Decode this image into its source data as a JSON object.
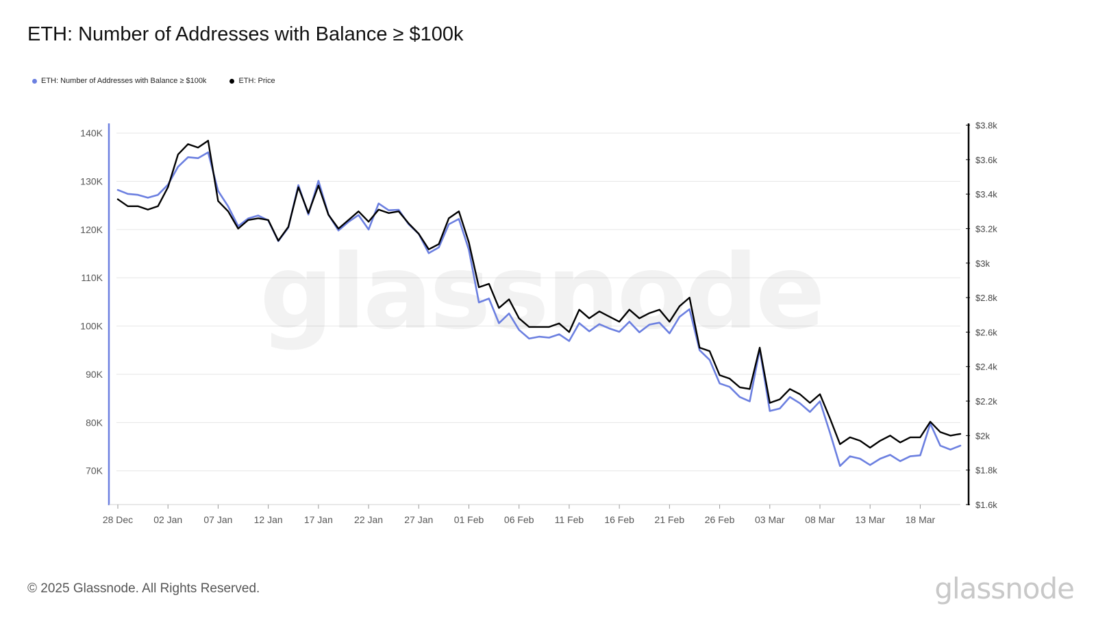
{
  "title": "ETH: Number of Addresses with Balance ≥ $100k",
  "footer": "© 2025 Glassnode. All Rights Reserved.",
  "brand": "glassnode",
  "colors": {
    "addresses": "#6b7fe0",
    "price": "#000000",
    "grid": "#e6e6e6"
  },
  "legend": [
    {
      "label": "ETH: Number of Addresses with Balance ≥ $100k",
      "color": "#6b7fe0"
    },
    {
      "label": "ETH: Price",
      "color": "#000000"
    }
  ],
  "chart_data": {
    "type": "line",
    "x": [
      "2024-12-28",
      "2024-12-29",
      "2024-12-30",
      "2024-12-31",
      "2025-01-01",
      "2025-01-02",
      "2025-01-03",
      "2025-01-04",
      "2025-01-05",
      "2025-01-06",
      "2025-01-07",
      "2025-01-08",
      "2025-01-09",
      "2025-01-10",
      "2025-01-11",
      "2025-01-12",
      "2025-01-13",
      "2025-01-14",
      "2025-01-15",
      "2025-01-16",
      "2025-01-17",
      "2025-01-18",
      "2025-01-19",
      "2025-01-20",
      "2025-01-21",
      "2025-01-22",
      "2025-01-23",
      "2025-01-24",
      "2025-01-25",
      "2025-01-26",
      "2025-01-27",
      "2025-01-28",
      "2025-01-29",
      "2025-01-30",
      "2025-01-31",
      "2025-02-01",
      "2025-02-02",
      "2025-02-03",
      "2025-02-04",
      "2025-02-05",
      "2025-02-06",
      "2025-02-07",
      "2025-02-08",
      "2025-02-09",
      "2025-02-10",
      "2025-02-11",
      "2025-02-12",
      "2025-02-13",
      "2025-02-14",
      "2025-02-15",
      "2025-02-16",
      "2025-02-17",
      "2025-02-18",
      "2025-02-19",
      "2025-02-20",
      "2025-02-21",
      "2025-02-22",
      "2025-02-23",
      "2025-02-24",
      "2025-02-25",
      "2025-02-26",
      "2025-02-27",
      "2025-02-28",
      "2025-03-01",
      "2025-03-02",
      "2025-03-03",
      "2025-03-04",
      "2025-03-05",
      "2025-03-06",
      "2025-03-07",
      "2025-03-08",
      "2025-03-09",
      "2025-03-10",
      "2025-03-11",
      "2025-03-12",
      "2025-03-13",
      "2025-03-14",
      "2025-03-15",
      "2025-03-16",
      "2025-03-17",
      "2025-03-18",
      "2025-03-19",
      "2025-03-20",
      "2025-03-21",
      "2025-03-22"
    ],
    "x_tick_labels": [
      "28 Dec",
      "02 Jan",
      "07 Jan",
      "12 Jan",
      "17 Jan",
      "22 Jan",
      "27 Jan",
      "01 Feb",
      "06 Feb",
      "11 Feb",
      "16 Feb",
      "21 Feb",
      "26 Feb",
      "03 Mar",
      "08 Mar",
      "13 Mar",
      "18 Mar"
    ],
    "left_ticks": [
      "70K",
      "80K",
      "90K",
      "100K",
      "110K",
      "120K",
      "130K",
      "140K"
    ],
    "right_ticks": [
      "$1.6k",
      "$1.8k",
      "$2k",
      "$2.2k",
      "$2.4k",
      "$2.6k",
      "$2.8k",
      "$3k",
      "$3.2k",
      "$3.4k",
      "$3.6k",
      "$3.8k"
    ],
    "ylim_left": [
      63000,
      142000
    ],
    "ylim_right": [
      1600,
      3810
    ],
    "series": [
      {
        "name": "ETH: Number of Addresses with Balance ≥ $100k",
        "axis": "left",
        "values": [
          128200,
          127400,
          127200,
          126600,
          127200,
          129300,
          133000,
          135000,
          134800,
          136000,
          128000,
          124800,
          120700,
          122300,
          122900,
          121900,
          117600,
          120400,
          129200,
          123100,
          130100,
          123100,
          119800,
          121600,
          123000,
          120000,
          125400,
          124000,
          124100,
          121100,
          119100,
          115100,
          116300,
          121100,
          122200,
          115800,
          104900,
          105700,
          100600,
          102600,
          99200,
          97400,
          97800,
          97600,
          98300,
          96900,
          100600,
          98900,
          100400,
          99500,
          98800,
          100900,
          98700,
          100300,
          100700,
          98500,
          101900,
          103500,
          95000,
          93000,
          88100,
          87400,
          85300,
          84400,
          95200,
          82400,
          82900,
          85300,
          84000,
          82200,
          84400,
          77900,
          71000,
          73000,
          72500,
          71200,
          72500,
          73300,
          72000,
          73000,
          73200,
          79800,
          75200,
          74400,
          75200
        ]
      },
      {
        "name": "ETH: Price",
        "axis": "right",
        "values": [
          3370,
          3330,
          3330,
          3310,
          3330,
          3440,
          3630,
          3690,
          3670,
          3710,
          3360,
          3300,
          3200,
          3250,
          3260,
          3250,
          3130,
          3210,
          3440,
          3290,
          3450,
          3280,
          3200,
          3250,
          3300,
          3240,
          3310,
          3290,
          3300,
          3230,
          3170,
          3080,
          3110,
          3260,
          3300,
          3120,
          2860,
          2880,
          2740,
          2790,
          2680,
          2630,
          2630,
          2630,
          2650,
          2600,
          2730,
          2680,
          2720,
          2690,
          2660,
          2730,
          2680,
          2710,
          2730,
          2660,
          2750,
          2800,
          2510,
          2490,
          2350,
          2330,
          2280,
          2270,
          2510,
          2190,
          2210,
          2270,
          2240,
          2190,
          2240,
          2100,
          1950,
          1990,
          1970,
          1930,
          1970,
          2000,
          1960,
          1990,
          1990,
          2080,
          2020,
          2000,
          2010
        ]
      }
    ]
  }
}
